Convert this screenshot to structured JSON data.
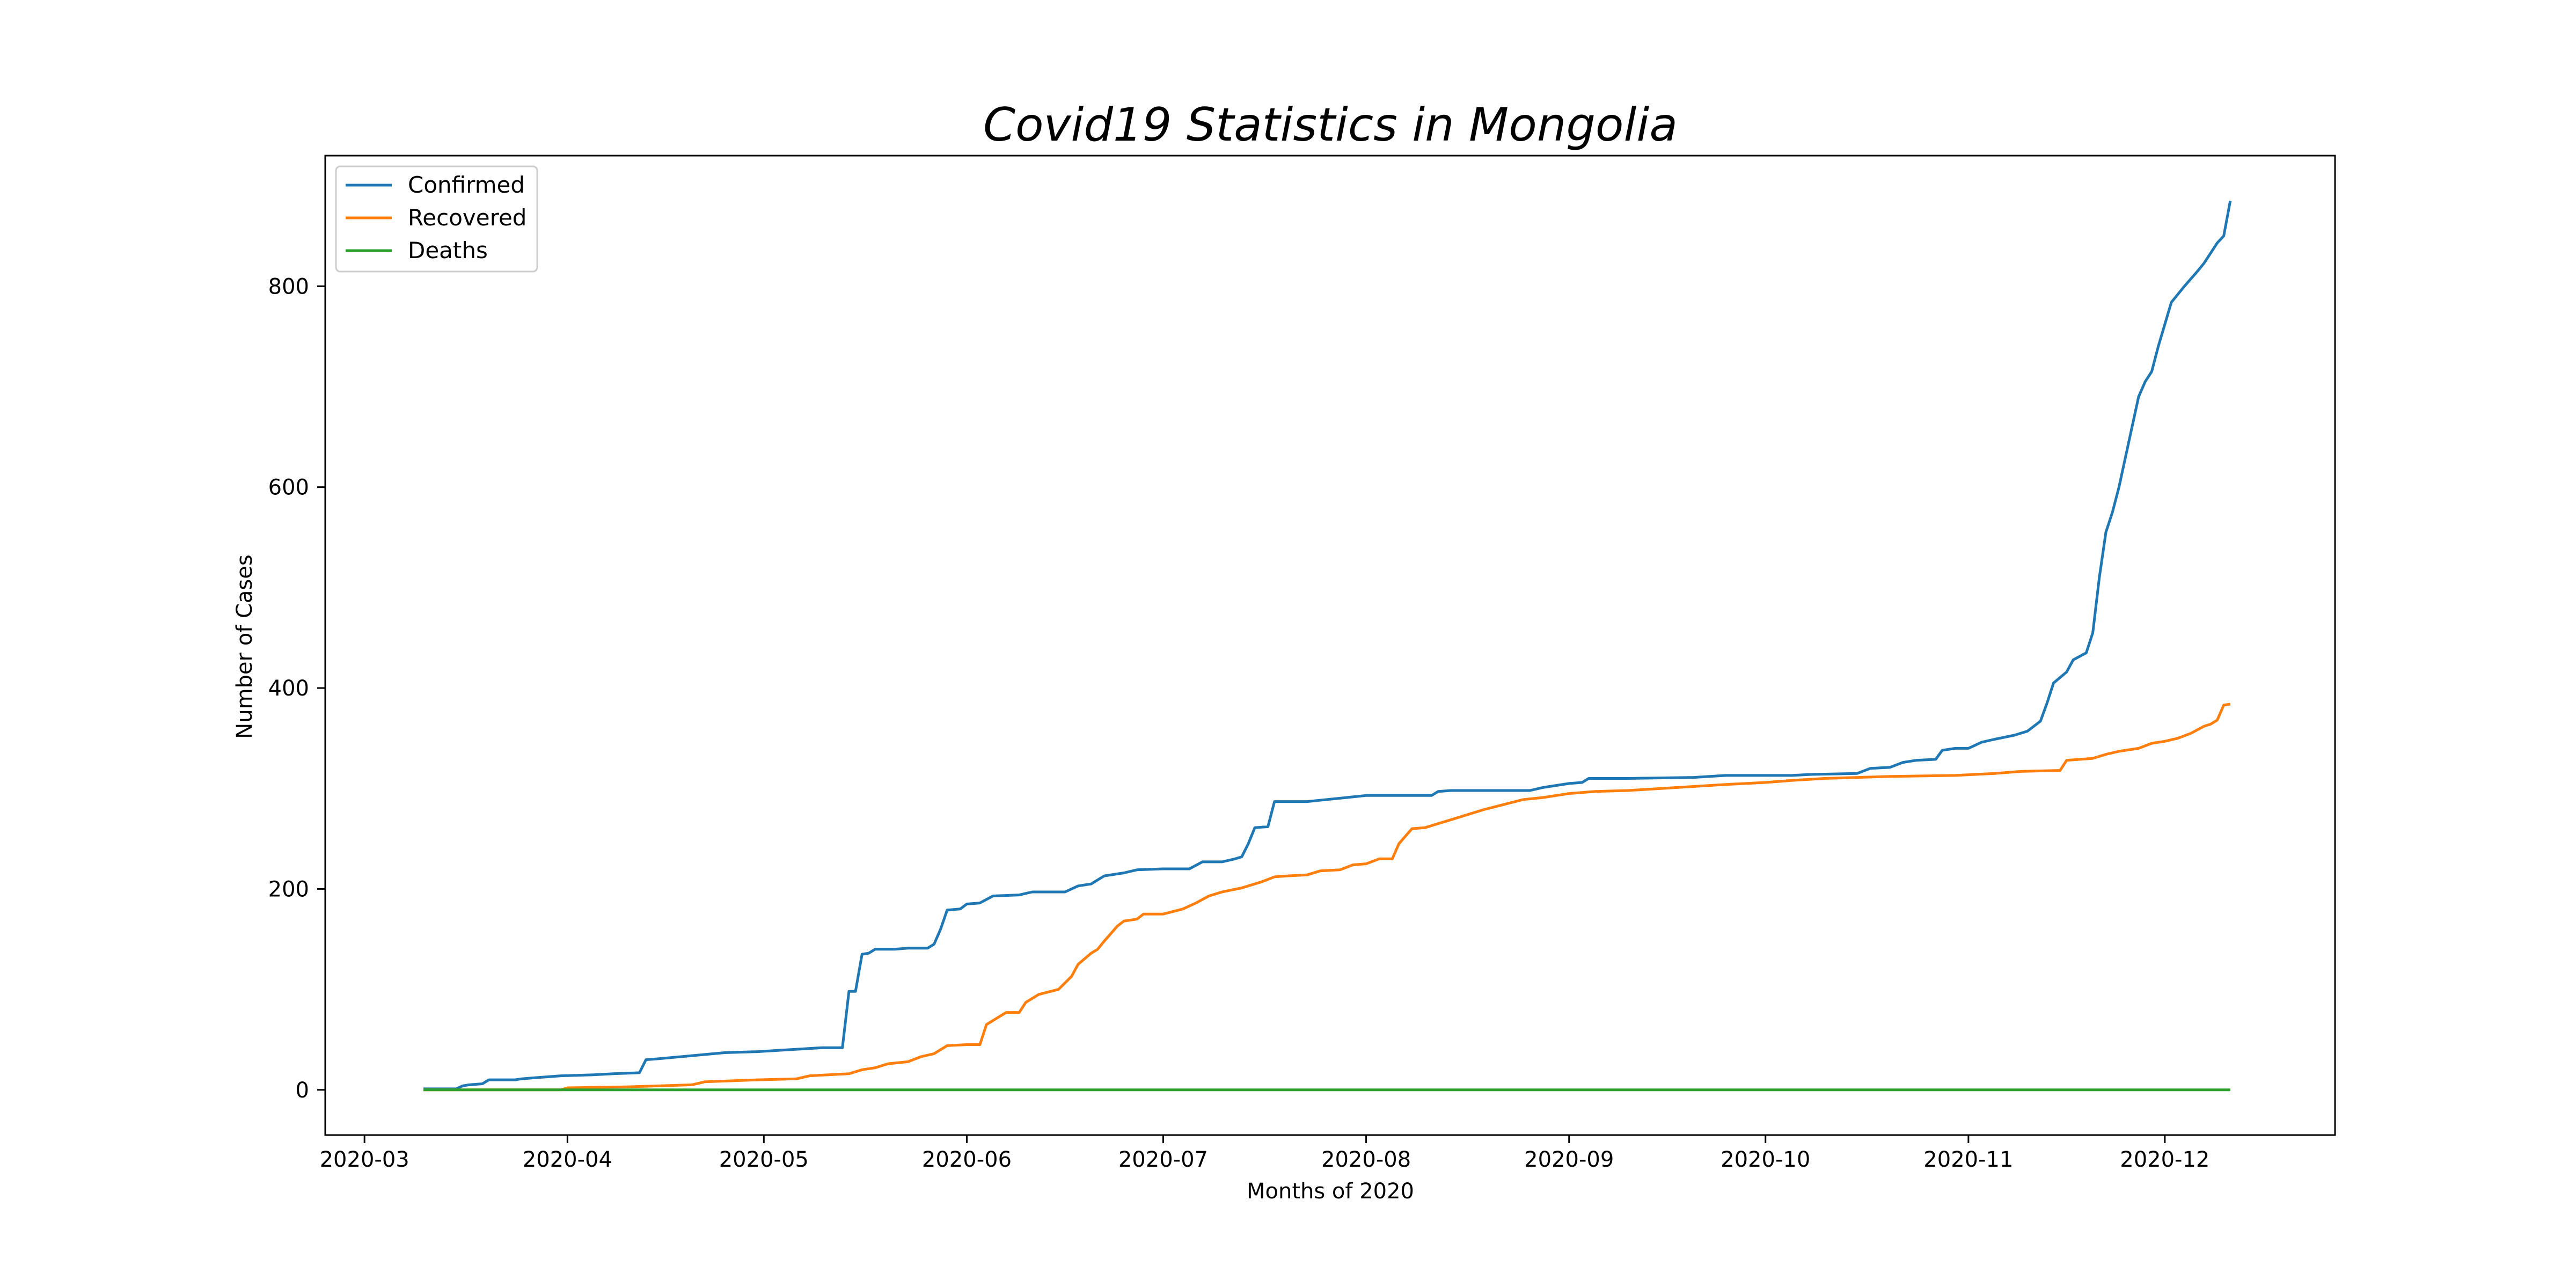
{
  "chart_data": {
    "type": "line",
    "title": "Covid19 Statistics in Mongolia",
    "xlabel": "Months of 2020",
    "ylabel": "Number of Cases",
    "x_axis_kind": "date",
    "xlim": [
      "2020-02-24",
      "2020-12-27"
    ],
    "ylim": [
      -45,
      930
    ],
    "x_ticks": [
      "2020-03-01",
      "2020-04-01",
      "2020-05-01",
      "2020-06-01",
      "2020-07-01",
      "2020-08-01",
      "2020-09-01",
      "2020-10-01",
      "2020-11-01",
      "2020-12-01"
    ],
    "x_tick_labels": [
      "2020-03",
      "2020-04",
      "2020-05",
      "2020-06",
      "2020-07",
      "2020-08",
      "2020-09",
      "2020-10",
      "2020-11",
      "2020-12"
    ],
    "y_ticks": [
      0,
      200,
      400,
      600,
      800
    ],
    "y_tick_labels": [
      "0",
      "200",
      "400",
      "600",
      "800"
    ],
    "grid": false,
    "legend_position": "top-left",
    "series": [
      {
        "name": "Confirmed",
        "color": "#1f77b4",
        "points": [
          [
            "2020-03-10",
            1
          ],
          [
            "2020-03-15",
            1
          ],
          [
            "2020-03-16",
            4
          ],
          [
            "2020-03-17",
            5
          ],
          [
            "2020-03-19",
            6
          ],
          [
            "2020-03-20",
            10
          ],
          [
            "2020-03-24",
            10
          ],
          [
            "2020-03-25",
            11
          ],
          [
            "2020-03-27",
            12
          ],
          [
            "2020-03-31",
            14
          ],
          [
            "2020-04-05",
            15
          ],
          [
            "2020-04-08",
            16
          ],
          [
            "2020-04-12",
            17
          ],
          [
            "2020-04-13",
            30
          ],
          [
            "2020-04-15",
            31
          ],
          [
            "2020-04-20",
            34
          ],
          [
            "2020-04-25",
            37
          ],
          [
            "2020-04-30",
            38
          ],
          [
            "2020-05-05",
            40
          ],
          [
            "2020-05-10",
            42
          ],
          [
            "2020-05-13",
            42
          ],
          [
            "2020-05-14",
            98
          ],
          [
            "2020-05-15",
            98
          ],
          [
            "2020-05-16",
            135
          ],
          [
            "2020-05-17",
            136
          ],
          [
            "2020-05-18",
            140
          ],
          [
            "2020-05-21",
            140
          ],
          [
            "2020-05-23",
            141
          ],
          [
            "2020-05-26",
            141
          ],
          [
            "2020-05-27",
            145
          ],
          [
            "2020-05-28",
            160
          ],
          [
            "2020-05-29",
            179
          ],
          [
            "2020-05-31",
            180
          ],
          [
            "2020-06-01",
            185
          ],
          [
            "2020-06-03",
            186
          ],
          [
            "2020-06-05",
            193
          ],
          [
            "2020-06-09",
            194
          ],
          [
            "2020-06-11",
            197
          ],
          [
            "2020-06-16",
            197
          ],
          [
            "2020-06-18",
            203
          ],
          [
            "2020-06-20",
            205
          ],
          [
            "2020-06-22",
            213
          ],
          [
            "2020-06-25",
            216
          ],
          [
            "2020-06-27",
            219
          ],
          [
            "2020-07-01",
            220
          ],
          [
            "2020-07-05",
            220
          ],
          [
            "2020-07-07",
            227
          ],
          [
            "2020-07-10",
            227
          ],
          [
            "2020-07-12",
            230
          ],
          [
            "2020-07-13",
            232
          ],
          [
            "2020-07-14",
            245
          ],
          [
            "2020-07-15",
            261
          ],
          [
            "2020-07-17",
            262
          ],
          [
            "2020-07-18",
            287
          ],
          [
            "2020-07-23",
            287
          ],
          [
            "2020-07-26",
            289
          ],
          [
            "2020-07-29",
            291
          ],
          [
            "2020-08-01",
            293
          ],
          [
            "2020-08-04",
            293
          ],
          [
            "2020-08-08",
            293
          ],
          [
            "2020-08-11",
            293
          ],
          [
            "2020-08-12",
            297
          ],
          [
            "2020-08-14",
            298
          ],
          [
            "2020-08-26",
            298
          ],
          [
            "2020-08-28",
            301
          ],
          [
            "2020-09-01",
            305
          ],
          [
            "2020-09-03",
            306
          ],
          [
            "2020-09-04",
            310
          ],
          [
            "2020-09-10",
            310
          ],
          [
            "2020-09-20",
            311
          ],
          [
            "2020-09-25",
            313
          ],
          [
            "2020-10-01",
            313
          ],
          [
            "2020-10-05",
            313
          ],
          [
            "2020-10-08",
            314
          ],
          [
            "2020-10-15",
            315
          ],
          [
            "2020-10-17",
            320
          ],
          [
            "2020-10-20",
            321
          ],
          [
            "2020-10-22",
            326
          ],
          [
            "2020-10-24",
            328
          ],
          [
            "2020-10-27",
            329
          ],
          [
            "2020-10-28",
            338
          ],
          [
            "2020-10-30",
            340
          ],
          [
            "2020-11-01",
            340
          ],
          [
            "2020-11-03",
            346
          ],
          [
            "2020-11-05",
            349
          ],
          [
            "2020-11-08",
            353
          ],
          [
            "2020-11-10",
            357
          ],
          [
            "2020-11-12",
            367
          ],
          [
            "2020-11-13",
            385
          ],
          [
            "2020-11-14",
            405
          ],
          [
            "2020-11-16",
            416
          ],
          [
            "2020-11-17",
            428
          ],
          [
            "2020-11-19",
            435
          ],
          [
            "2020-11-20",
            455
          ],
          [
            "2020-11-21",
            510
          ],
          [
            "2020-11-22",
            555
          ],
          [
            "2020-11-23",
            575
          ],
          [
            "2020-11-24",
            600
          ],
          [
            "2020-11-25",
            630
          ],
          [
            "2020-11-26",
            660
          ],
          [
            "2020-11-27",
            690
          ],
          [
            "2020-11-28",
            705
          ],
          [
            "2020-11-29",
            715
          ],
          [
            "2020-11-30",
            740
          ],
          [
            "2020-12-02",
            784
          ],
          [
            "2020-12-04",
            800
          ],
          [
            "2020-12-06",
            815
          ],
          [
            "2020-12-07",
            823
          ],
          [
            "2020-12-08",
            833
          ],
          [
            "2020-12-09",
            843
          ],
          [
            "2020-12-10",
            850
          ],
          [
            "2020-12-11",
            885
          ]
        ]
      },
      {
        "name": "Recovered",
        "color": "#ff7f0e",
        "points": [
          [
            "2020-03-10",
            0
          ],
          [
            "2020-03-31",
            0
          ],
          [
            "2020-04-01",
            2
          ],
          [
            "2020-04-10",
            3
          ],
          [
            "2020-04-20",
            5
          ],
          [
            "2020-04-22",
            8
          ],
          [
            "2020-04-30",
            10
          ],
          [
            "2020-05-06",
            11
          ],
          [
            "2020-05-08",
            14
          ],
          [
            "2020-05-14",
            16
          ],
          [
            "2020-05-16",
            20
          ],
          [
            "2020-05-18",
            22
          ],
          [
            "2020-05-20",
            26
          ],
          [
            "2020-05-23",
            28
          ],
          [
            "2020-05-25",
            33
          ],
          [
            "2020-05-27",
            36
          ],
          [
            "2020-05-29",
            44
          ],
          [
            "2020-06-01",
            45
          ],
          [
            "2020-06-03",
            45
          ],
          [
            "2020-06-04",
            65
          ],
          [
            "2020-06-06",
            73
          ],
          [
            "2020-06-07",
            77
          ],
          [
            "2020-06-09",
            77
          ],
          [
            "2020-06-10",
            87
          ],
          [
            "2020-06-12",
            95
          ],
          [
            "2020-06-15",
            100
          ],
          [
            "2020-06-17",
            113
          ],
          [
            "2020-06-18",
            125
          ],
          [
            "2020-06-20",
            136
          ],
          [
            "2020-06-21",
            140
          ],
          [
            "2020-06-22",
            148
          ],
          [
            "2020-06-24",
            163
          ],
          [
            "2020-06-25",
            168
          ],
          [
            "2020-06-27",
            170
          ],
          [
            "2020-06-28",
            175
          ],
          [
            "2020-07-01",
            175
          ],
          [
            "2020-07-04",
            180
          ],
          [
            "2020-07-06",
            186
          ],
          [
            "2020-07-08",
            193
          ],
          [
            "2020-07-10",
            197
          ],
          [
            "2020-07-13",
            201
          ],
          [
            "2020-07-16",
            207
          ],
          [
            "2020-07-18",
            212
          ],
          [
            "2020-07-20",
            213
          ],
          [
            "2020-07-23",
            214
          ],
          [
            "2020-07-25",
            218
          ],
          [
            "2020-07-28",
            219
          ],
          [
            "2020-07-30",
            224
          ],
          [
            "2020-08-01",
            225
          ],
          [
            "2020-08-03",
            230
          ],
          [
            "2020-08-05",
            230
          ],
          [
            "2020-08-06",
            245
          ],
          [
            "2020-08-08",
            260
          ],
          [
            "2020-08-10",
            261
          ],
          [
            "2020-08-12",
            265
          ],
          [
            "2020-08-14",
            269
          ],
          [
            "2020-08-17",
            275
          ],
          [
            "2020-08-19",
            279
          ],
          [
            "2020-08-22",
            284
          ],
          [
            "2020-08-25",
            289
          ],
          [
            "2020-08-28",
            291
          ],
          [
            "2020-09-01",
            295
          ],
          [
            "2020-09-05",
            297
          ],
          [
            "2020-09-10",
            298
          ],
          [
            "2020-09-15",
            300
          ],
          [
            "2020-09-20",
            302
          ],
          [
            "2020-09-25",
            304
          ],
          [
            "2020-10-01",
            306
          ],
          [
            "2020-10-05",
            308
          ],
          [
            "2020-10-10",
            310
          ],
          [
            "2020-10-20",
            312
          ],
          [
            "2020-10-30",
            313
          ],
          [
            "2020-11-05",
            315
          ],
          [
            "2020-11-09",
            317
          ],
          [
            "2020-11-15",
            318
          ],
          [
            "2020-11-16",
            328
          ],
          [
            "2020-11-20",
            330
          ],
          [
            "2020-11-22",
            334
          ],
          [
            "2020-11-24",
            337
          ],
          [
            "2020-11-27",
            340
          ],
          [
            "2020-11-29",
            345
          ],
          [
            "2020-12-01",
            347
          ],
          [
            "2020-12-03",
            350
          ],
          [
            "2020-12-05",
            355
          ],
          [
            "2020-12-07",
            362
          ],
          [
            "2020-12-08",
            364
          ],
          [
            "2020-12-09",
            368
          ],
          [
            "2020-12-10",
            383
          ],
          [
            "2020-12-11",
            384
          ]
        ]
      },
      {
        "name": "Deaths",
        "color": "#2ca02c",
        "points": [
          [
            "2020-03-10",
            0
          ],
          [
            "2020-12-11",
            0
          ]
        ]
      }
    ]
  }
}
